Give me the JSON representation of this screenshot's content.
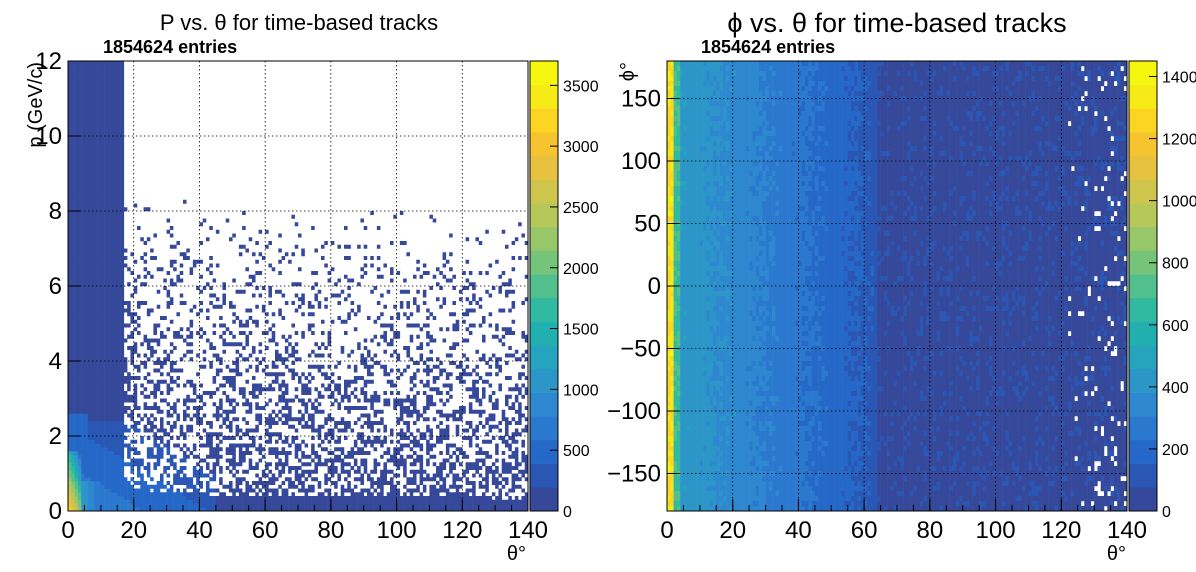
{
  "colors": {
    "palette": [
      "#36489a",
      "#2a56b4",
      "#2568c7",
      "#2b78cf",
      "#2e88cf",
      "#2c96c8",
      "#26a3bd",
      "#22afb0",
      "#32b9a1",
      "#52c08d",
      "#76c47a",
      "#97c769",
      "#b7c85a",
      "#d0c54c",
      "#e6c23f",
      "#f6c430",
      "#fcd522",
      "#f6ea17",
      "#f5f80e"
    ],
    "grid": "#000000"
  },
  "chart_data": [
    {
      "type": "heatmap",
      "title": "P vs. θ for time-based tracks",
      "subtitle": "1854624 entries",
      "xlabel": "θ°",
      "ylabel": "p (GeV/c)",
      "xlim": [
        0,
        140
      ],
      "ylim": [
        0,
        12
      ],
      "xticks": [
        "0",
        "20",
        "40",
        "60",
        "80",
        "100",
        "120",
        "140"
      ],
      "yticks": [
        "0",
        "2",
        "4",
        "6",
        "8",
        "10",
        "12"
      ],
      "zlim": [
        0,
        3700
      ],
      "zticks": [
        "0",
        "500",
        "1000",
        "1500",
        "2000",
        "2500",
        "3000",
        "3500"
      ],
      "grid": true,
      "entries": 1854624,
      "features": {
        "dense_region": "counts concentrated at low theta and low momentum, falling along p ~ 1/theta",
        "peak_theta": [
          1,
          4
        ],
        "peak_p": [
          0,
          1
        ],
        "sparse_region": "scattered single bins above the dense band"
      }
    },
    {
      "type": "heatmap",
      "title": "ϕ vs. θ for time-based tracks",
      "subtitle": "1854624 entries",
      "xlabel": "θ°",
      "ylabel": "ϕ°",
      "xlim": [
        0,
        140
      ],
      "ylim": [
        -180,
        180
      ],
      "xticks": [
        "0",
        "20",
        "40",
        "60",
        "80",
        "100",
        "120",
        "140"
      ],
      "yticks": [
        "−150",
        "−100",
        "−50",
        "0",
        "50",
        "100",
        "150"
      ],
      "zlim": [
        0,
        1450
      ],
      "zticks": [
        "0",
        "200",
        "400",
        "600",
        "800",
        "1000",
        "1200",
        "1400"
      ],
      "grid": true,
      "entries": 1854624,
      "features": {
        "dense_region": "counts highest at theta near 2 deg, uniform in phi, decreasing with theta",
        "edge_theta": 64,
        "sparse_region": "isolated empty bins at theta above 120"
      }
    }
  ]
}
